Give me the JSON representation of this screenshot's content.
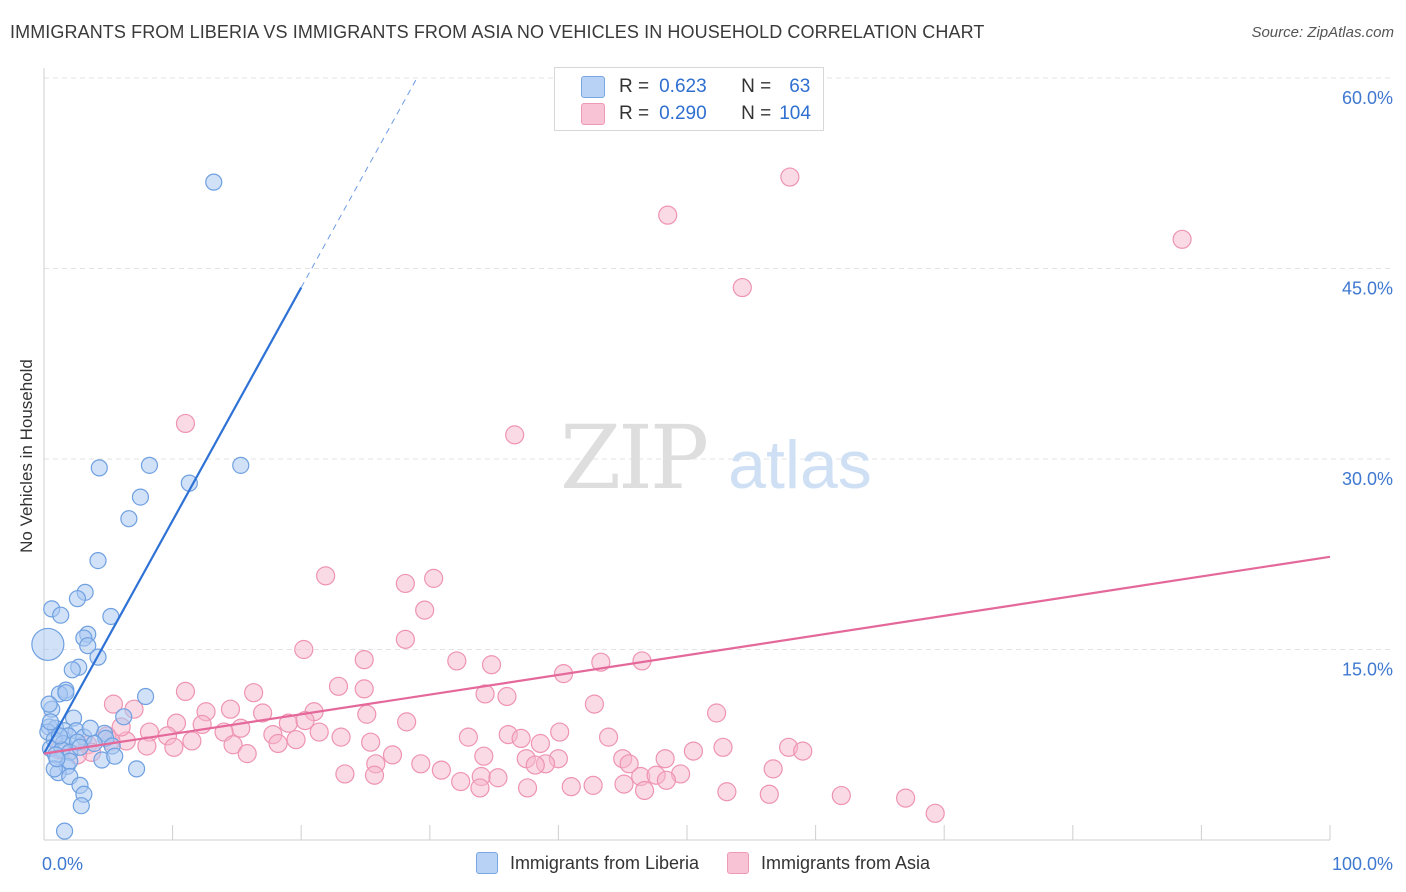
{
  "header": {
    "title": "IMMIGRANTS FROM LIBERIA VS IMMIGRANTS FROM ASIA NO VEHICLES IN HOUSEHOLD CORRELATION CHART",
    "source": "Source: ZipAtlas.com"
  },
  "watermark": {
    "zip": "ZIP",
    "atlas": "atlas"
  },
  "legend": {
    "r_label": "R =",
    "n_label": "N =",
    "rows": [
      {
        "r": "0.623",
        "n": "63"
      },
      {
        "r": "0.290",
        "n": "104"
      }
    ]
  },
  "colors": {
    "liberia_fill": "#a9c9f2",
    "liberia_stroke": "#6fa0e0",
    "liberia_line": "#2f72d6",
    "asia_fill": "#f6b6cb",
    "asia_stroke": "#ee94b2",
    "asia_line": "#e4689a",
    "tick_text": "#3f78d0",
    "grid": "#e3e3e3"
  },
  "chart_data": {
    "type": "scatter",
    "title": "IMMIGRANTS FROM LIBERIA VS IMMIGRANTS FROM ASIA NO VEHICLES IN HOUSEHOLD CORRELATION CHART",
    "xlabel": "",
    "ylabel": "No Vehicles in Household",
    "xlim": [
      0,
      100
    ],
    "ylim": [
      0,
      60
    ],
    "x_tick_labels": [
      {
        "value": 0,
        "label": "0.0%"
      },
      {
        "value": 100,
        "label": "100.0%"
      }
    ],
    "y_tick_labels": [
      {
        "value": 15,
        "label": "15.0%"
      },
      {
        "value": 30,
        "label": "30.0%"
      },
      {
        "value": 45,
        "label": "45.0%"
      },
      {
        "value": 60,
        "label": "60.0%"
      }
    ],
    "series": [
      {
        "name": "Immigrants from Liberia",
        "r": 0.623,
        "n": 63,
        "trend": {
          "x": [
            0,
            20
          ],
          "y": [
            6.8,
            43.5
          ],
          "dashed_to": [
            29,
            60
          ]
        },
        "points": [
          [
            0.3,
            15.4
          ],
          [
            13.2,
            51.8
          ],
          [
            4.3,
            29.3
          ],
          [
            8.2,
            29.5
          ],
          [
            15.3,
            29.5
          ],
          [
            11.3,
            28.1
          ],
          [
            7.5,
            27.0
          ],
          [
            6.6,
            25.3
          ],
          [
            4.2,
            22.0
          ],
          [
            3.2,
            19.5
          ],
          [
            2.6,
            19.0
          ],
          [
            0.6,
            18.2
          ],
          [
            1.3,
            17.7
          ],
          [
            5.2,
            17.6
          ],
          [
            3.4,
            16.2
          ],
          [
            3.1,
            15.9
          ],
          [
            3.4,
            15.3
          ],
          [
            4.2,
            14.4
          ],
          [
            2.7,
            13.6
          ],
          [
            2.2,
            13.4
          ],
          [
            1.7,
            11.8
          ],
          [
            1.2,
            11.5
          ],
          [
            1.7,
            11.6
          ],
          [
            7.9,
            11.3
          ],
          [
            0.6,
            10.3
          ],
          [
            6.2,
            9.7
          ],
          [
            2.3,
            9.6
          ],
          [
            0.4,
            8.9
          ],
          [
            0.9,
            8.8
          ],
          [
            1.6,
            8.6
          ],
          [
            2.5,
            8.6
          ],
          [
            4.7,
            8.4
          ],
          [
            0.3,
            8.5
          ],
          [
            1.9,
            8.2
          ],
          [
            3.1,
            8.1
          ],
          [
            4.8,
            8.0
          ],
          [
            0.8,
            7.9
          ],
          [
            1.5,
            7.6
          ],
          [
            2.6,
            7.7
          ],
          [
            3.9,
            7.6
          ],
          [
            5.3,
            7.4
          ],
          [
            0.5,
            7.2
          ],
          [
            1.4,
            7.1
          ],
          [
            2.0,
            6.9
          ],
          [
            0.9,
            6.7
          ],
          [
            4.5,
            6.3
          ],
          [
            5.5,
            6.6
          ],
          [
            1.8,
            5.8
          ],
          [
            2.0,
            6.2
          ],
          [
            7.2,
            5.6
          ],
          [
            1.1,
            5.3
          ],
          [
            0.8,
            5.6
          ],
          [
            2.0,
            5.0
          ],
          [
            2.8,
            4.3
          ],
          [
            3.1,
            3.6
          ],
          [
            2.9,
            2.7
          ],
          [
            1.6,
            0.7
          ],
          [
            1.2,
            8.2
          ],
          [
            2.8,
            7.3
          ],
          [
            0.5,
            9.3
          ],
          [
            3.6,
            8.8
          ],
          [
            1.0,
            6.4
          ],
          [
            0.4,
            10.7
          ]
        ]
      },
      {
        "name": "Immigrants from Asia",
        "r": 0.29,
        "n": 104,
        "trend": {
          "x": [
            0,
            100
          ],
          "y": [
            6.8,
            22.3
          ]
        },
        "points": [
          [
            58.0,
            52.2
          ],
          [
            48.5,
            49.2
          ],
          [
            88.5,
            47.3
          ],
          [
            54.3,
            43.5
          ],
          [
            11.0,
            32.8
          ],
          [
            36.6,
            31.9
          ],
          [
            21.9,
            20.8
          ],
          [
            28.1,
            20.2
          ],
          [
            30.3,
            20.6
          ],
          [
            29.6,
            18.1
          ],
          [
            28.1,
            15.8
          ],
          [
            20.2,
            15.0
          ],
          [
            24.9,
            14.2
          ],
          [
            32.1,
            14.1
          ],
          [
            34.8,
            13.8
          ],
          [
            43.3,
            14.0
          ],
          [
            46.5,
            14.1
          ],
          [
            40.4,
            13.1
          ],
          [
            22.9,
            12.1
          ],
          [
            24.9,
            11.9
          ],
          [
            11.0,
            11.7
          ],
          [
            16.3,
            11.6
          ],
          [
            34.3,
            11.5
          ],
          [
            36.0,
            11.3
          ],
          [
            42.8,
            10.7
          ],
          [
            5.4,
            10.7
          ],
          [
            7.0,
            10.3
          ],
          [
            12.6,
            10.1
          ],
          [
            14.5,
            10.3
          ],
          [
            17.0,
            10.0
          ],
          [
            21.0,
            10.1
          ],
          [
            25.1,
            9.9
          ],
          [
            52.3,
            10.0
          ],
          [
            28.2,
            9.3
          ],
          [
            19.0,
            9.2
          ],
          [
            10.3,
            9.2
          ],
          [
            15.3,
            8.8
          ],
          [
            8.2,
            8.5
          ],
          [
            9.6,
            8.2
          ],
          [
            14.0,
            8.5
          ],
          [
            17.8,
            8.3
          ],
          [
            23.1,
            8.1
          ],
          [
            36.1,
            8.3
          ],
          [
            37.1,
            8.0
          ],
          [
            40.1,
            8.5
          ],
          [
            43.9,
            8.1
          ],
          [
            33.0,
            8.1
          ],
          [
            21.4,
            8.5
          ],
          [
            6.4,
            7.8
          ],
          [
            8.0,
            7.4
          ],
          [
            10.1,
            7.3
          ],
          [
            11.5,
            7.8
          ],
          [
            14.7,
            7.5
          ],
          [
            18.2,
            7.6
          ],
          [
            19.6,
            7.9
          ],
          [
            25.4,
            7.7
          ],
          [
            38.6,
            7.6
          ],
          [
            52.8,
            7.3
          ],
          [
            3.4,
            7.5
          ],
          [
            5.2,
            7.8
          ],
          [
            1.2,
            7.1
          ],
          [
            3.7,
            6.9
          ],
          [
            15.8,
            6.8
          ],
          [
            27.1,
            6.7
          ],
          [
            34.2,
            6.6
          ],
          [
            37.5,
            6.4
          ],
          [
            40.0,
            6.4
          ],
          [
            45.0,
            6.4
          ],
          [
            48.3,
            6.4
          ],
          [
            50.5,
            7.0
          ],
          [
            57.9,
            7.3
          ],
          [
            59.0,
            7.0
          ],
          [
            25.8,
            6.0
          ],
          [
            29.3,
            6.0
          ],
          [
            39.0,
            6.0
          ],
          [
            45.5,
            6.0
          ],
          [
            30.9,
            5.5
          ],
          [
            38.2,
            5.9
          ],
          [
            49.5,
            5.2
          ],
          [
            56.7,
            5.6
          ],
          [
            23.4,
            5.2
          ],
          [
            25.7,
            5.1
          ],
          [
            34.0,
            5.0
          ],
          [
            35.3,
            4.9
          ],
          [
            46.4,
            5.0
          ],
          [
            47.6,
            5.1
          ],
          [
            32.4,
            4.6
          ],
          [
            33.9,
            4.1
          ],
          [
            37.6,
            4.1
          ],
          [
            41.0,
            4.2
          ],
          [
            42.7,
            4.3
          ],
          [
            45.1,
            4.4
          ],
          [
            48.4,
            4.7
          ],
          [
            46.7,
            3.9
          ],
          [
            53.1,
            3.8
          ],
          [
            56.4,
            3.6
          ],
          [
            62.0,
            3.5
          ],
          [
            67.0,
            3.3
          ],
          [
            69.3,
            2.1
          ],
          [
            2.6,
            6.7
          ],
          [
            12.3,
            9.1
          ],
          [
            20.3,
            9.4
          ],
          [
            6.0,
            8.9
          ],
          [
            4.9,
            8.2
          ]
        ]
      }
    ]
  }
}
